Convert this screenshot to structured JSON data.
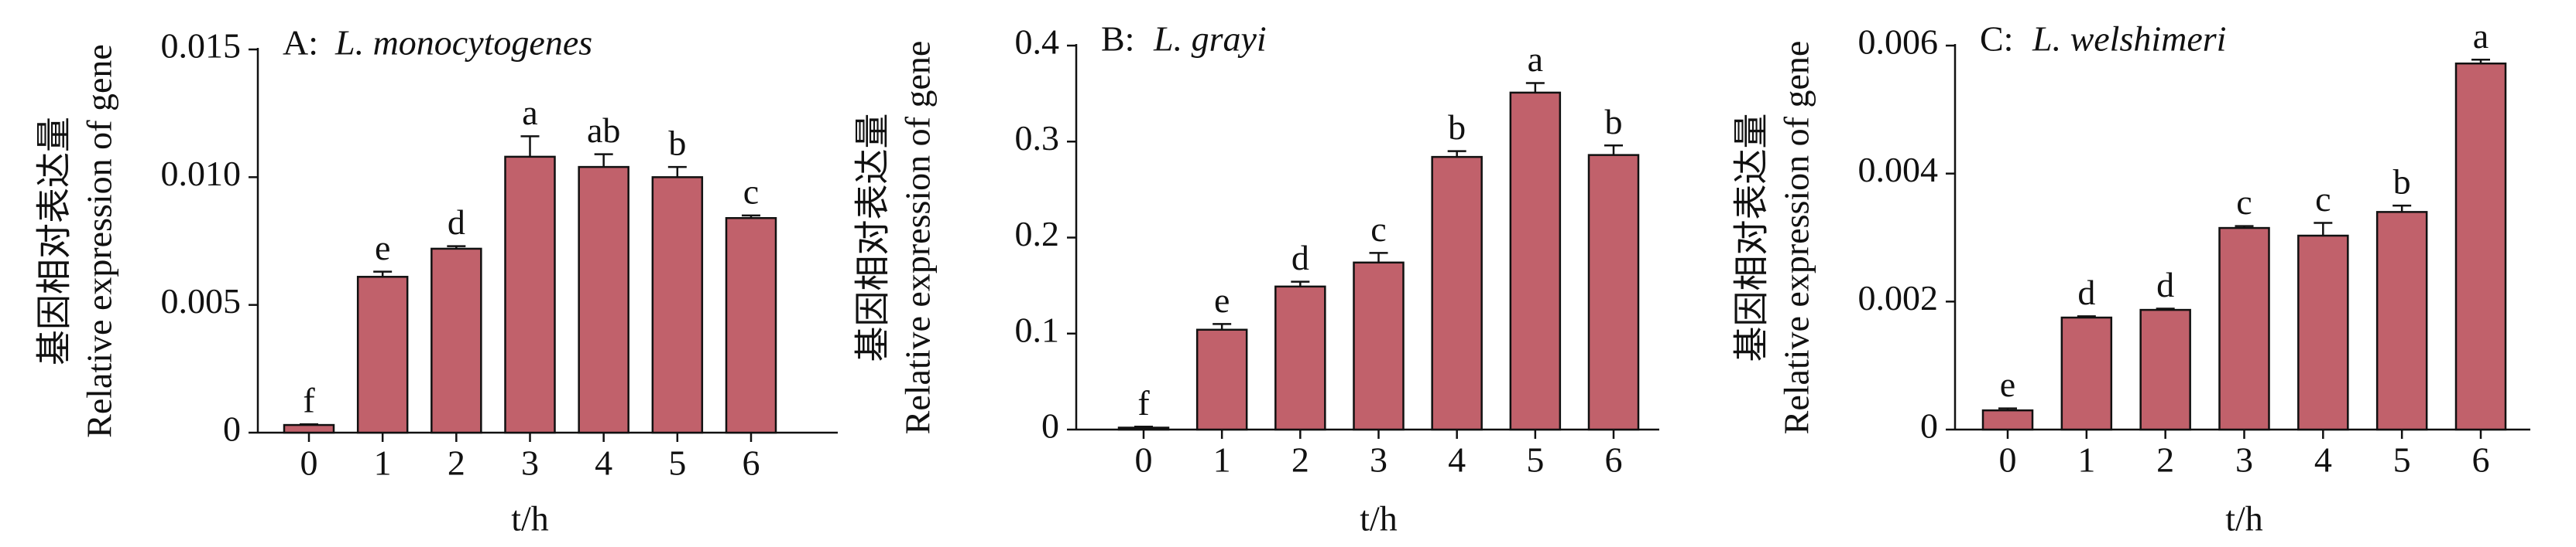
{
  "chart_data": [
    {
      "type": "bar",
      "panel_label": "A:",
      "title": "L. monocytogenes",
      "y_label": [
        "基因相对表达量",
        "Relative expression of gene"
      ],
      "x_label": "t/h",
      "categories": [
        "0",
        "1",
        "2",
        "3",
        "4",
        "5",
        "6"
      ],
      "values": [
        0.0003,
        0.0061,
        0.0072,
        0.0108,
        0.0104,
        0.01,
        0.0084
      ],
      "errors": [
        3e-05,
        0.0002,
        0.0001,
        0.0008,
        0.0005,
        0.0004,
        0.0001
      ],
      "letters": [
        "f",
        "e",
        "d",
        "a",
        "ab",
        "b",
        "c"
      ],
      "color": "#c1616b",
      "ylim": [
        0,
        0.015
      ],
      "yticks": [
        0,
        0.005,
        {
          "value": 0.01,
          "label": "0.010"
        },
        0.015
      ]
    },
    {
      "type": "bar",
      "panel_label": "B:",
      "title": "L. grayi",
      "y_label": [
        "基因相对表达量",
        "Relative expression of gene"
      ],
      "x_label": "t/h",
      "categories": [
        "0",
        "1",
        "2",
        "3",
        "4",
        "5",
        "6"
      ],
      "values": [
        0.002,
        0.104,
        0.149,
        0.174,
        0.284,
        0.351,
        0.286
      ],
      "errors": [
        0.001,
        0.006,
        0.005,
        0.01,
        0.006,
        0.01,
        0.01
      ],
      "letters": [
        "f",
        "e",
        "d",
        "c",
        "b",
        "a",
        "b"
      ],
      "color": "#c1616b",
      "ylim": [
        0,
        0.4
      ],
      "yticks": [
        0,
        0.1,
        0.2,
        0.3,
        0.4
      ]
    },
    {
      "type": "bar",
      "panel_label": "C:",
      "title": "L. welshimeri",
      "y_label": [
        "基因相对表达量",
        "Relative expression of gene"
      ],
      "x_label": "t/h",
      "categories": [
        "0",
        "1",
        "2",
        "3",
        "4",
        "5",
        "6"
      ],
      "values": [
        0.0003,
        0.00175,
        0.00187,
        0.00315,
        0.00303,
        0.0034,
        0.00572
      ],
      "errors": [
        3e-05,
        2e-05,
        2e-05,
        3e-05,
        0.0002,
        0.0001,
        6e-05
      ],
      "letters": [
        "e",
        "d",
        "d",
        "c",
        "c",
        "b",
        "a"
      ],
      "color": "#c1616b",
      "ylim": [
        0,
        0.006
      ],
      "yticks": [
        0,
        0.002,
        0.004,
        0.006
      ]
    }
  ]
}
